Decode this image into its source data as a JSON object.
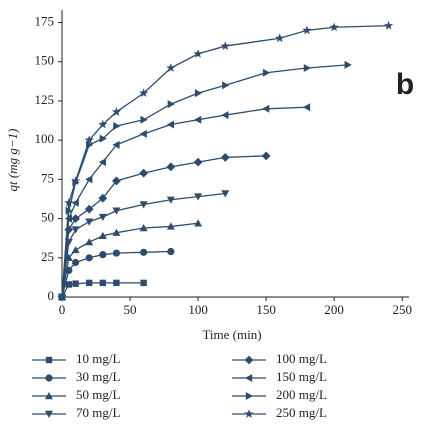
{
  "chart_data": {
    "type": "line",
    "annotation": "b",
    "x_label": "Time (min)",
    "y_label": "qt (mg g−1)",
    "xlim": [
      0,
      255
    ],
    "ylim": [
      0,
      183
    ],
    "xticks": [
      0,
      50,
      100,
      150,
      200,
      250
    ],
    "yticks": [
      0,
      25,
      50,
      75,
      100,
      125,
      150,
      175
    ],
    "series": [
      {
        "name": "10 mg/L",
        "color": "#2e4c6d",
        "marker": "square",
        "x": [
          0,
          5,
          10,
          20,
          30,
          40,
          60
        ],
        "values": [
          0,
          8,
          8.5,
          9,
          9,
          9,
          9
        ]
      },
      {
        "name": "30 mg/L",
        "color": "#2e4c6d",
        "marker": "circle",
        "x": [
          0,
          5,
          10,
          20,
          30,
          40,
          60,
          80
        ],
        "values": [
          0,
          17,
          22,
          25,
          27,
          28,
          28.5,
          29
        ]
      },
      {
        "name": "50 mg/L",
        "color": "#2e4c6d",
        "marker": "triangle-up",
        "x": [
          0,
          5,
          10,
          20,
          30,
          40,
          60,
          80,
          100
        ],
        "values": [
          0,
          25,
          30,
          35,
          39,
          41,
          44,
          45,
          47
        ]
      },
      {
        "name": "70 mg/L",
        "color": "#2e4c6d",
        "marker": "triangle-down",
        "x": [
          0,
          5,
          10,
          20,
          30,
          40,
          60,
          80,
          100,
          120
        ],
        "values": [
          0,
          35,
          43,
          48,
          51,
          55,
          59,
          62,
          64,
          66
        ]
      },
      {
        "name": "100 mg/L",
        "color": "#2e4c6d",
        "marker": "diamond",
        "x": [
          0,
          5,
          10,
          20,
          30,
          40,
          60,
          80,
          100,
          120,
          150
        ],
        "values": [
          0,
          43,
          50,
          56,
          63,
          74,
          79,
          83,
          86,
          89,
          90
        ]
      },
      {
        "name": "150 mg/L",
        "color": "#2e4c6d",
        "marker": "triangle-left",
        "x": [
          0,
          5,
          10,
          20,
          30,
          40,
          60,
          80,
          100,
          120,
          150,
          180
        ],
        "values": [
          0,
          50,
          60,
          75,
          86,
          97,
          104,
          110,
          113,
          116,
          120,
          121
        ]
      },
      {
        "name": "200 mg/L",
        "color": "#2e4c6d",
        "marker": "triangle-right",
        "x": [
          0,
          5,
          10,
          20,
          30,
          40,
          60,
          80,
          100,
          120,
          150,
          180,
          210
        ],
        "values": [
          0,
          55,
          73,
          97,
          101,
          109,
          113,
          123,
          130,
          135,
          143,
          146,
          148
        ]
      },
      {
        "name": "250 mg/L",
        "color": "#2e4c6d",
        "marker": "star",
        "x": [
          0,
          5,
          10,
          20,
          30,
          40,
          60,
          80,
          100,
          120,
          160,
          180,
          200,
          240
        ],
        "values": [
          0,
          60,
          74,
          100,
          110,
          118,
          130,
          146,
          155,
          160,
          165,
          170,
          172,
          173
        ]
      }
    ]
  }
}
